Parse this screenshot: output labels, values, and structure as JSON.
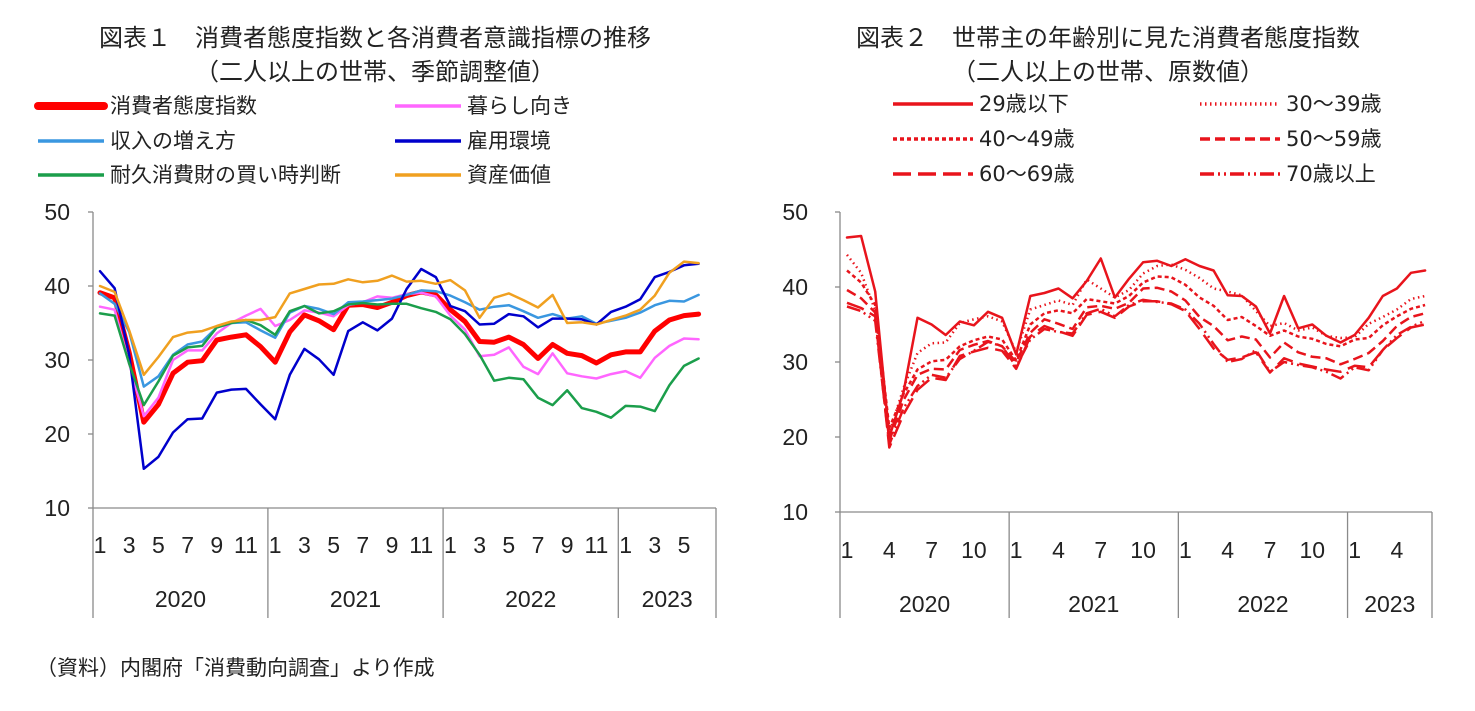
{
  "source": "（資料）内閣府「消費動向調査」より作成",
  "chart_data": [
    {
      "type": "line",
      "title": "図表１　消費者態度指数と各消費者意識指標の推移",
      "subtitle": "（二人以上の世帯、季節調整値）",
      "ylim": [
        10,
        50
      ],
      "yticks": [
        "50",
        "40",
        "30",
        "20",
        "10"
      ],
      "xtick_labels": [
        "1",
        "3",
        "5",
        "7",
        "9",
        "11",
        "1",
        "3",
        "5",
        "7",
        "9",
        "11",
        "1",
        "3",
        "5",
        "7",
        "9",
        "11",
        "1",
        "3",
        "5"
      ],
      "year_labels": [
        "2020",
        "2021",
        "2022",
        "2023"
      ],
      "x_months": 42,
      "legend_columns": 2,
      "series": [
        {
          "name": "消費者態度指数",
          "color": "#ff0000",
          "width": 5,
          "values": [
            39.1,
            38.4,
            31.0,
            21.6,
            24.0,
            28.2,
            29.7,
            29.9,
            32.7,
            33.1,
            33.4,
            31.8,
            29.7,
            33.8,
            36.1,
            35.3,
            34.1,
            37.4,
            37.5,
            37.1,
            37.8,
            38.7,
            39.2,
            38.8,
            36.8,
            35.2,
            32.5,
            32.4,
            33.1,
            32.1,
            30.2,
            32.1,
            30.9,
            30.6,
            29.6,
            30.7,
            31.1,
            31.1,
            33.9,
            35.4,
            36.0,
            36.2
          ]
        },
        {
          "name": "暮らし向き",
          "color": "#ff66ff",
          "width": 2.5,
          "values": [
            37.2,
            36.8,
            29.5,
            22.4,
            24.9,
            30.0,
            31.3,
            31.3,
            33.6,
            35.0,
            36.0,
            36.9,
            34.6,
            35.4,
            36.7,
            36.4,
            35.9,
            37.4,
            37.8,
            38.6,
            38.4,
            38.9,
            39.1,
            38.6,
            36.0,
            34.1,
            30.5,
            30.7,
            31.7,
            29.1,
            28.1,
            30.9,
            28.2,
            27.8,
            27.5,
            28.1,
            28.5,
            27.6,
            30.3,
            31.9,
            32.9,
            32.8
          ]
        },
        {
          "name": "収入の増え方",
          "color": "#3a97e0",
          "width": 2.5,
          "values": [
            39.0,
            37.6,
            33.8,
            26.4,
            27.8,
            30.7,
            32.1,
            32.5,
            34.4,
            35.0,
            35.1,
            34.0,
            33.0,
            36.4,
            37.3,
            36.9,
            36.2,
            37.8,
            37.9,
            38.1,
            38.3,
            38.8,
            39.4,
            39.3,
            38.7,
            37.8,
            36.8,
            37.2,
            37.4,
            36.6,
            35.7,
            36.2,
            35.6,
            35.9,
            34.9,
            35.3,
            35.7,
            36.4,
            37.4,
            38.0,
            37.9,
            38.8
          ]
        },
        {
          "name": "雇用環境",
          "color": "#0000cc",
          "width": 2.5,
          "values": [
            42.0,
            39.7,
            30.7,
            15.3,
            16.9,
            20.2,
            22.0,
            22.1,
            25.6,
            26.0,
            26.1,
            24.0,
            22.0,
            28.0,
            31.5,
            30.1,
            28.0,
            33.9,
            35.1,
            34.0,
            35.6,
            39.6,
            42.3,
            41.2,
            37.3,
            36.6,
            34.8,
            34.9,
            36.2,
            35.9,
            34.4,
            35.6,
            35.6,
            35.5,
            34.8,
            36.5,
            37.2,
            38.2,
            41.2,
            41.9,
            42.8,
            43.0
          ]
        },
        {
          "name": "耐久消費財の買い時判断",
          "color": "#1b9e4b",
          "width": 2.5,
          "values": [
            36.3,
            36.0,
            29.5,
            23.9,
            27.1,
            30.6,
            31.7,
            31.9,
            34.4,
            35.0,
            35.4,
            34.7,
            33.4,
            36.6,
            37.3,
            36.3,
            36.6,
            37.5,
            37.7,
            37.5,
            37.6,
            37.6,
            37.0,
            36.5,
            35.5,
            33.5,
            30.7,
            27.2,
            27.6,
            27.4,
            24.9,
            23.9,
            25.9,
            23.5,
            23.0,
            22.2,
            23.8,
            23.7,
            23.1,
            26.6,
            29.2,
            30.2
          ]
        },
        {
          "name": "資産価値",
          "color": "#f0a020",
          "width": 2.5,
          "values": [
            40.0,
            39.2,
            34.0,
            28.0,
            30.4,
            33.1,
            33.7,
            33.9,
            34.6,
            35.2,
            35.4,
            35.4,
            35.8,
            39.0,
            39.6,
            40.2,
            40.3,
            40.9,
            40.5,
            40.7,
            41.4,
            40.6,
            40.7,
            40.3,
            40.8,
            39.4,
            35.7,
            38.4,
            39.0,
            38.1,
            37.1,
            38.8,
            35.0,
            35.1,
            34.8,
            35.4,
            36.0,
            36.8,
            38.7,
            41.8,
            43.3,
            43.1
          ]
        }
      ]
    },
    {
      "type": "line",
      "title": "図表２　世帯主の年齢別に見た消費者態度指数",
      "subtitle": "（二人以上の世帯、原数値）",
      "ylim": [
        10,
        50
      ],
      "yticks": [
        "50",
        "40",
        "30",
        "20",
        "10"
      ],
      "xtick_labels": [
        "1",
        "4",
        "7",
        "10",
        "1",
        "4",
        "7",
        "10",
        "1",
        "4",
        "7",
        "10",
        "1",
        "4"
      ],
      "year_labels": [
        "2020",
        "2021",
        "2022",
        "2023"
      ],
      "x_months": 42,
      "legend_columns": 2,
      "series": [
        {
          "name": "29歳以下",
          "color": "#e8141c",
          "dash": "",
          "width": 2.5,
          "values": [
            46.6,
            46.8,
            39.4,
            20.0,
            25.9,
            35.9,
            35.0,
            33.6,
            35.4,
            34.9,
            36.7,
            35.9,
            31.0,
            38.8,
            39.2,
            39.8,
            38.5,
            40.8,
            43.8,
            38.6,
            41.1,
            43.3,
            43.5,
            42.8,
            43.7,
            42.8,
            42.2,
            38.9,
            38.8,
            37.4,
            33.8,
            38.8,
            34.5,
            35.0,
            33.5,
            32.6,
            33.6,
            35.9,
            38.8,
            39.8,
            41.9,
            42.2
          ]
        },
        {
          "name": "30～39歳",
          "color": "#e8141c",
          "dash": "1.5 3.5",
          "width": 2.5,
          "values": [
            44.3,
            41.9,
            36.9,
            20.5,
            26.5,
            31.2,
            32.5,
            32.6,
            35.2,
            35.7,
            36.1,
            35.4,
            31.3,
            37.0,
            37.6,
            38.2,
            37.6,
            41.0,
            39.8,
            38.6,
            39.6,
            41.8,
            42.8,
            43.0,
            42.3,
            41.2,
            39.8,
            39.4,
            38.9,
            36.8,
            34.8,
            35.2,
            34.2,
            34.6,
            33.5,
            33.2,
            33.3,
            35.1,
            36.0,
            37.0,
            38.4,
            38.8
          ]
        },
        {
          "name": "40～49歳",
          "color": "#e8141c",
          "dash": "4 3",
          "width": 2.5,
          "values": [
            42.2,
            40.6,
            37.6,
            21.2,
            25.7,
            29.0,
            30.1,
            30.3,
            32.1,
            32.9,
            33.4,
            33.0,
            30.2,
            35.0,
            36.5,
            36.9,
            36.5,
            38.4,
            38.1,
            37.8,
            38.8,
            40.6,
            41.4,
            41.3,
            40.3,
            38.6,
            37.5,
            35.6,
            36.0,
            34.8,
            33.5,
            34.2,
            33.4,
            33.1,
            32.4,
            32.1,
            33.0,
            33.2,
            34.9,
            36.1,
            37.1,
            37.6
          ]
        },
        {
          "name": "50～59歳",
          "color": "#e8141c",
          "dash": "10 5",
          "width": 2.5,
          "values": [
            39.6,
            38.5,
            36.6,
            19.5,
            24.9,
            28.3,
            29.1,
            29.0,
            31.6,
            32.3,
            32.8,
            32.1,
            30.0,
            33.9,
            35.7,
            35.1,
            34.4,
            37.3,
            37.5,
            37.1,
            37.9,
            39.8,
            39.9,
            39.4,
            38.2,
            36.0,
            34.8,
            32.9,
            33.4,
            33.0,
            30.6,
            32.6,
            31.3,
            30.7,
            30.5,
            29.7,
            30.4,
            31.2,
            32.8,
            34.8,
            36.0,
            36.5
          ]
        },
        {
          "name": "60～69歳",
          "color": "#e8141c",
          "dash": "18 7",
          "width": 2.5,
          "values": [
            37.9,
            37.2,
            36.1,
            18.6,
            23.0,
            26.3,
            27.9,
            27.6,
            30.8,
            31.4,
            31.9,
            31.5,
            29.1,
            33.4,
            34.8,
            34.1,
            33.5,
            36.3,
            36.7,
            35.9,
            37.4,
            38.1,
            38.1,
            37.7,
            36.8,
            34.4,
            31.8,
            30.3,
            30.6,
            31.3,
            28.6,
            30.5,
            29.8,
            29.4,
            29.0,
            28.7,
            29.5,
            29.3,
            31.6,
            33.2,
            34.6,
            35.0
          ]
        },
        {
          "name": "70歳以上",
          "color": "#e8141c",
          "dash": "14 4 2 4 2 4",
          "width": 2.5,
          "values": [
            37.4,
            36.8,
            35.5,
            19.0,
            23.8,
            26.8,
            28.3,
            27.9,
            30.4,
            31.5,
            32.7,
            32.1,
            29.4,
            33.0,
            34.4,
            34.0,
            33.8,
            36.5,
            37.1,
            36.1,
            37.6,
            38.3,
            38.0,
            37.8,
            37.0,
            35.1,
            32.4,
            30.0,
            30.4,
            31.6,
            28.7,
            30.0,
            29.6,
            29.3,
            28.7,
            27.8,
            29.3,
            28.9,
            31.6,
            33.6,
            34.7,
            35.5
          ]
        }
      ]
    }
  ]
}
